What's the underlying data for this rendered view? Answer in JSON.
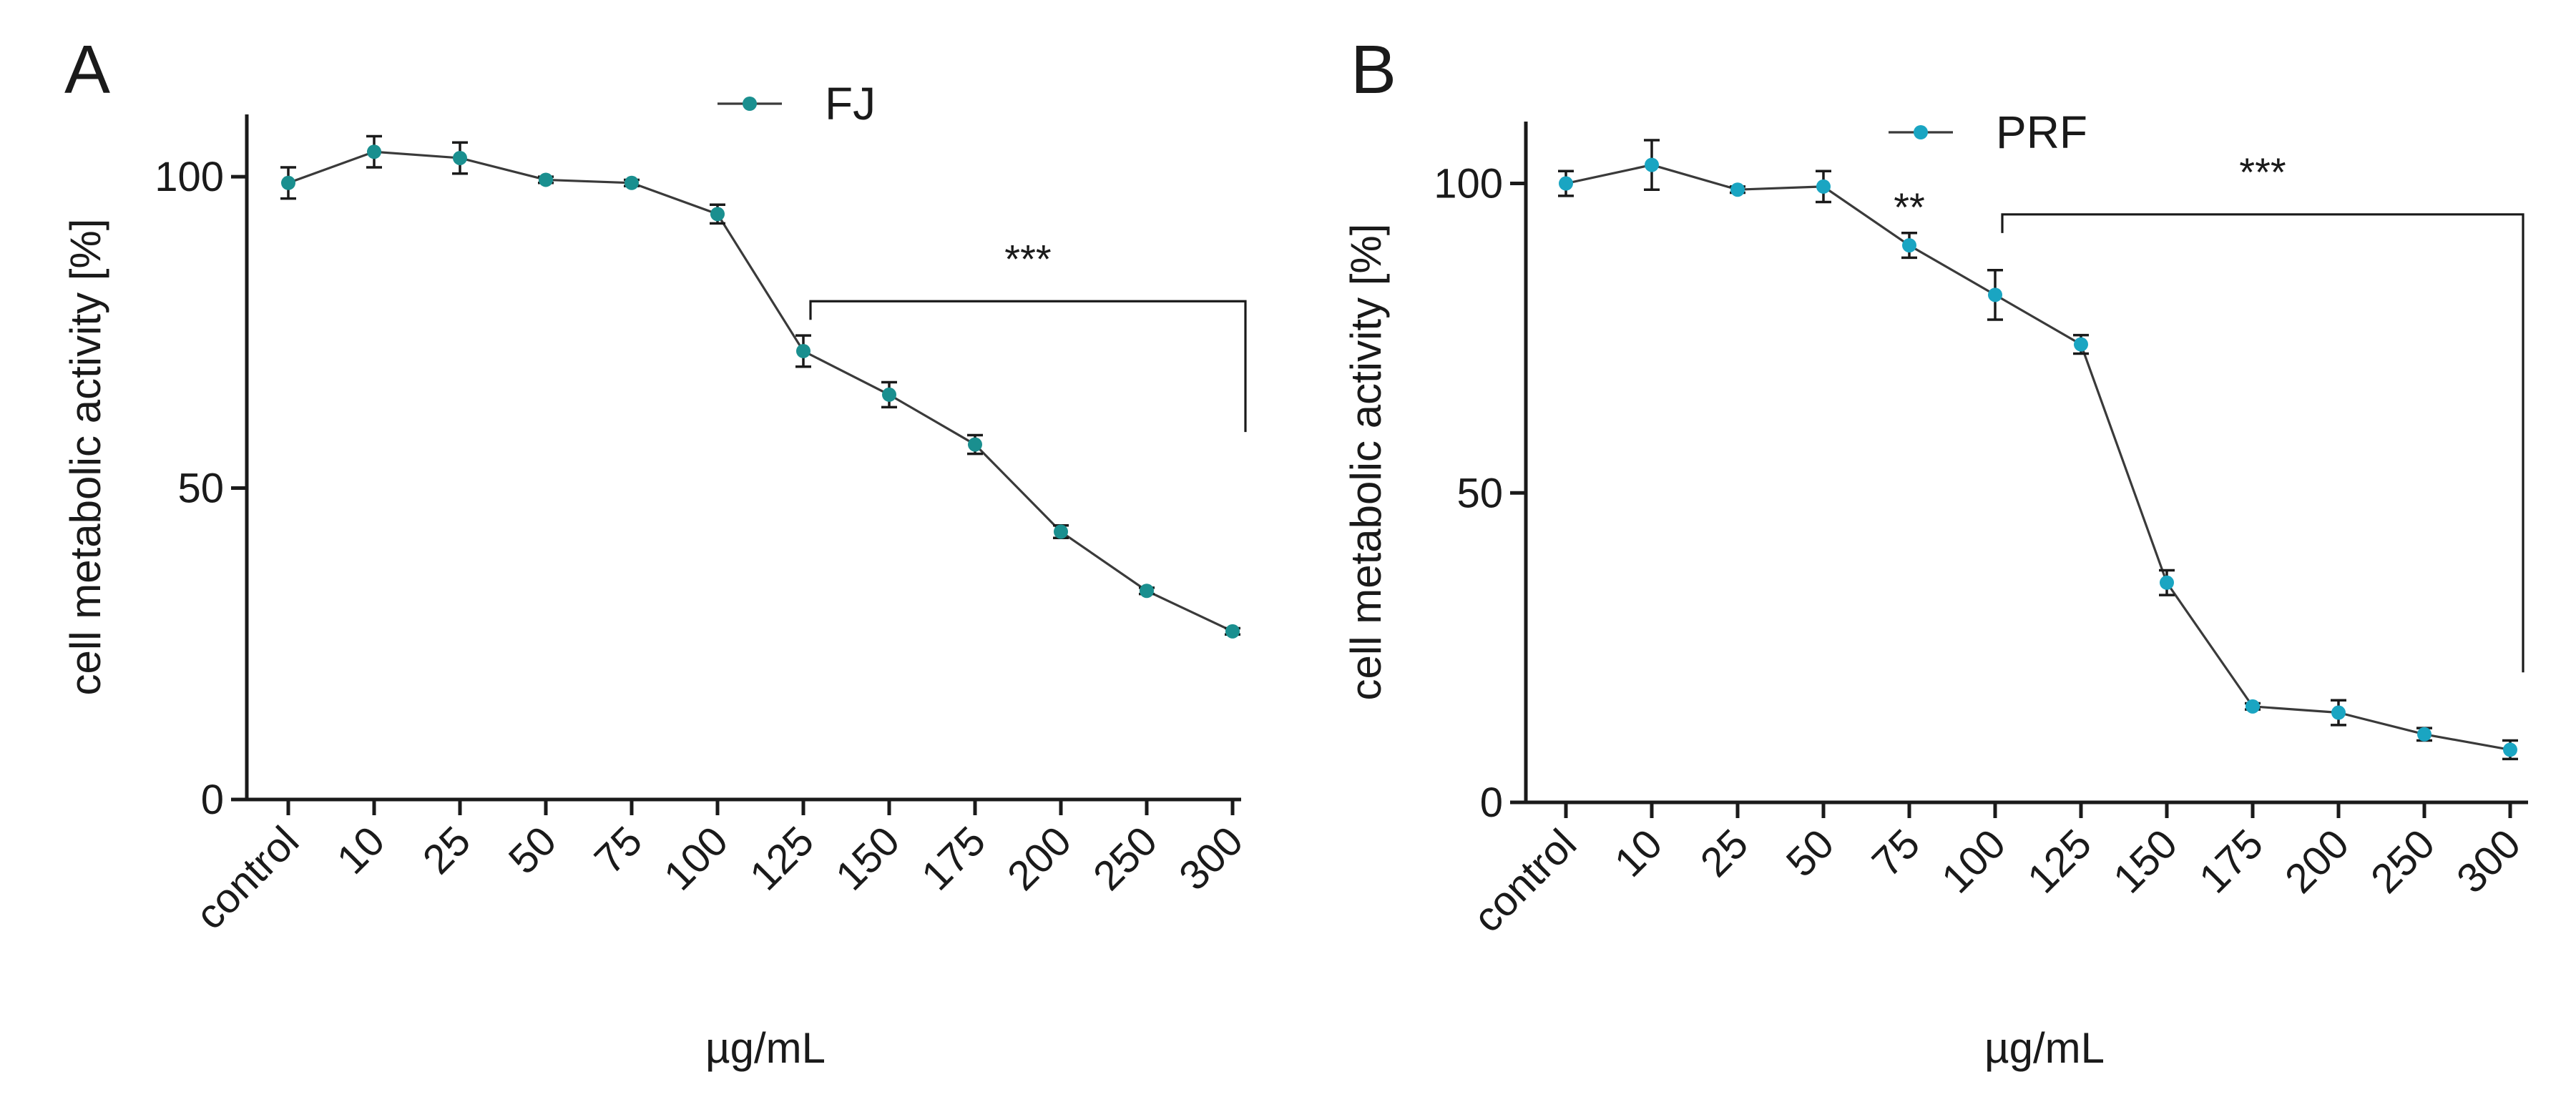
{
  "chart_data": [
    {
      "type": "line",
      "panel_label": "A",
      "xlabel": "µg/mL",
      "ylabel": "cell metabolic activity [%]",
      "ylim": [
        0,
        110
      ],
      "yticks": [
        0,
        50,
        100
      ],
      "categories": [
        "control",
        "10",
        "25",
        "50",
        "75",
        "100",
        "125",
        "150",
        "175",
        "200",
        "250",
        "300"
      ],
      "legend_position": "top-center",
      "series": [
        {
          "name": "FJ",
          "color": "#1a8f8f",
          "values": [
            99,
            104,
            103,
            99.5,
            99,
            94,
            72,
            65,
            57,
            43,
            33.5,
            27
          ],
          "errors": [
            2.5,
            2.5,
            2.5,
            0.5,
            0.5,
            1.5,
            2.5,
            2,
            1.5,
            1,
            0.5,
            0.5
          ]
        }
      ],
      "annotations": [
        {
          "text": "***",
          "from_category": "125",
          "to_category": "300",
          "bracket_y": 80,
          "drop_to_y": 59
        }
      ]
    },
    {
      "type": "line",
      "panel_label": "B",
      "xlabel": "µg/mL",
      "ylabel": "cell metabolic activity [%]",
      "ylim": [
        0,
        110
      ],
      "yticks": [
        0,
        50,
        100
      ],
      "categories": [
        "control",
        "10",
        "25",
        "50",
        "75",
        "100",
        "125",
        "150",
        "175",
        "200",
        "250",
        "300"
      ],
      "legend_position": "top-center",
      "series": [
        {
          "name": "PRF",
          "color": "#1aa5c2",
          "values": [
            100,
            103,
            99,
            99.5,
            90,
            82,
            74,
            35.5,
            15.5,
            14.5,
            11,
            8.5
          ],
          "errors": [
            2,
            4,
            0.5,
            2.5,
            2,
            4,
            1.5,
            2,
            0.5,
            2,
            1,
            1.5
          ]
        }
      ],
      "annotations": [
        {
          "text": "**",
          "category": "75",
          "y": 96
        },
        {
          "text": "***",
          "from_category": "100",
          "to_category": "300",
          "bracket_y": 95,
          "drop_to_y": 21
        }
      ]
    }
  ]
}
